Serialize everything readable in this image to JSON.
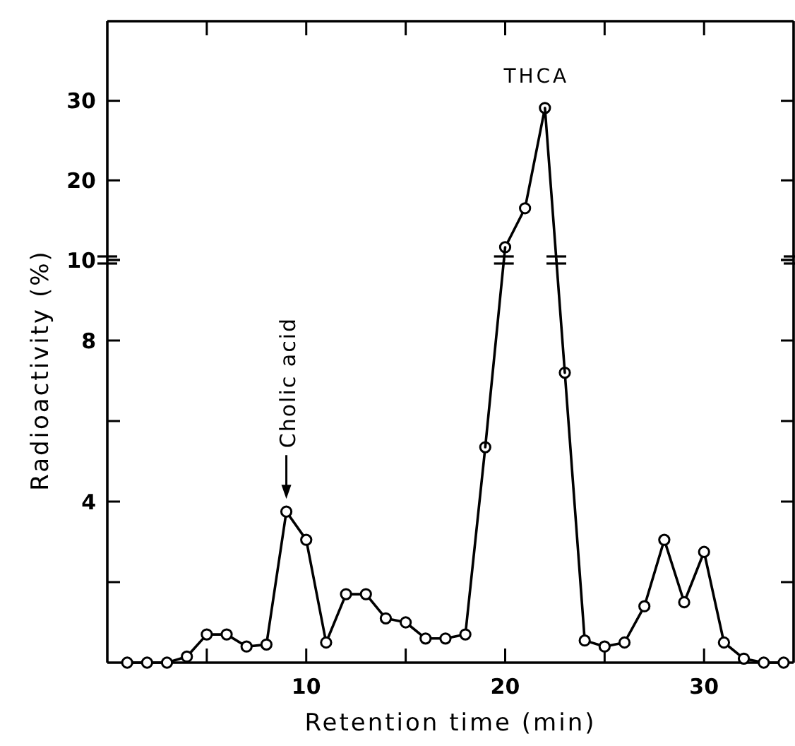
{
  "chart_data": [
    {
      "type": "line",
      "x": [
        20,
        21,
        22
      ],
      "values": [
        11.6,
        16.5,
        29.1
      ],
      "color": "#000000",
      "marker": "circle",
      "xlim": [
        0,
        34.5
      ],
      "xticks": [
        {
          "value": 5,
          "label": null
        },
        {
          "value": 10,
          "label": null
        },
        {
          "value": 15,
          "label": null
        },
        {
          "value": 20,
          "label": null
        },
        {
          "value": 25,
          "label": null
        },
        {
          "value": 30,
          "label": null
        }
      ],
      "ylim": [
        10,
        40
      ],
      "yticks": [
        {
          "value": 10,
          "label": null
        },
        20,
        30
      ],
      "tick_labels": "y",
      "annotations": [
        {
          "text": "THCA",
          "x": 22,
          "y": 29.1
        }
      ]
    },
    {
      "type": "line",
      "x": [
        1,
        2,
        3,
        4,
        5,
        6,
        7,
        8,
        9,
        10,
        11,
        12,
        13,
        14,
        15,
        16,
        17,
        18,
        19,
        20,
        21,
        22,
        23,
        24,
        25,
        26,
        27,
        28,
        29,
        30,
        31,
        32,
        33,
        34
      ],
      "values": [
        0,
        0,
        0,
        0.15,
        0.7,
        0.7,
        0.4,
        0.45,
        3.75,
        3.05,
        0.5,
        1.7,
        1.7,
        1.1,
        1.0,
        0.6,
        0.6,
        0.7,
        5.35,
        null,
        null,
        null,
        7.2,
        0.55,
        0.4,
        0.5,
        1.4,
        3.05,
        1.5,
        2.75,
        0.5,
        0.1,
        0,
        0
      ],
      "color": "#000000",
      "marker": "circle",
      "xlim": [
        0,
        34.5
      ],
      "xticks": [
        {
          "value": 5,
          "label": null
        },
        10,
        {
          "value": 15,
          "label": null
        },
        20,
        {
          "value": 25,
          "label": null
        },
        30
      ],
      "ylim": [
        0,
        10
      ],
      "yticks": [
        {
          "value": 2,
          "label": null
        },
        4,
        {
          "value": 6,
          "label": null
        },
        8,
        10
      ],
      "xlabel": "Retention time (min)",
      "ylabel": "Radioactivity (%)",
      "annotations": [
        {
          "text": "Cholic acid",
          "x": 9,
          "y": 3.75
        }
      ]
    }
  ]
}
